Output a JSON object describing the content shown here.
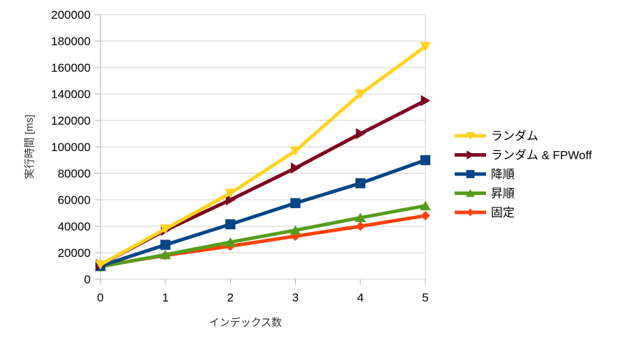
{
  "chart_data": {
    "type": "line",
    "title": "",
    "xlabel": "インデックス数",
    "ylabel": "実行時間 [ms]",
    "x": [
      0,
      1,
      2,
      3,
      4,
      5
    ],
    "xlim": [
      0,
      5
    ],
    "ylim": [
      0,
      200000
    ],
    "xticks": [
      "0",
      "1",
      "2",
      "3",
      "4",
      "5"
    ],
    "yticks": [
      "0",
      "20000",
      "40000",
      "60000",
      "80000",
      "100000",
      "120000",
      "140000",
      "160000",
      "180000",
      "200000"
    ],
    "grid": true,
    "legend_position": "right",
    "series": [
      {
        "name": "ランダム",
        "color": "#ffd320",
        "marker": "triangle-down",
        "values": [
          11000,
          38000,
          65000,
          97000,
          140000,
          176000
        ]
      },
      {
        "name": "ランダム & FPWoff",
        "color": "#7e0021",
        "marker": "triangle-right",
        "values": [
          11000,
          37000,
          60000,
          84000,
          110000,
          135000
        ]
      },
      {
        "name": "降順",
        "color": "#004586",
        "marker": "square",
        "values": [
          10000,
          26000,
          41500,
          57500,
          72500,
          90000
        ]
      },
      {
        "name": "昇順",
        "color": "#579d1c",
        "marker": "triangle-up",
        "values": [
          9500,
          18500,
          28000,
          37000,
          46500,
          55500
        ]
      },
      {
        "name": "固定",
        "color": "#ff420e",
        "marker": "diamond",
        "values": [
          10000,
          18000,
          25000,
          32500,
          40000,
          48000
        ]
      }
    ]
  },
  "style": {
    "grid_color": "#d0d0d0",
    "axis_color": "#b3b3b3"
  }
}
